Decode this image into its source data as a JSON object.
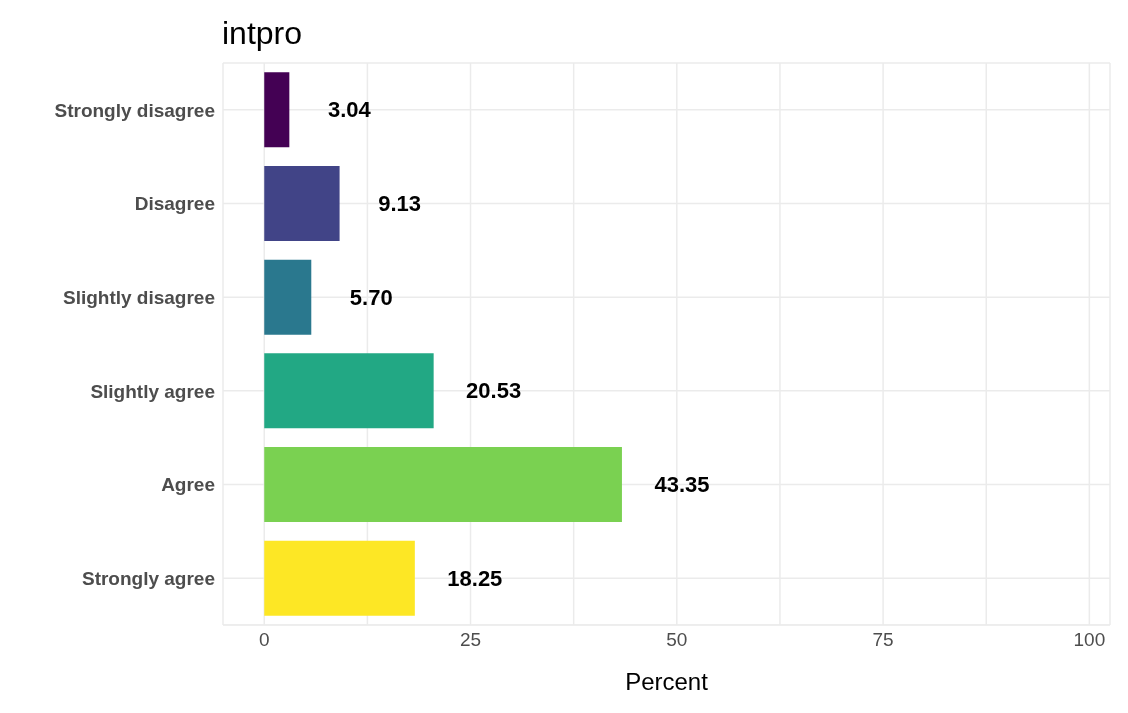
{
  "chart_data": {
    "type": "bar",
    "orientation": "horizontal",
    "title": "intpro",
    "xlabel": "Percent",
    "categories": [
      "Strongly disagree",
      "Disagree",
      "Slightly disagree",
      "Slightly agree",
      "Agree",
      "Strongly agree"
    ],
    "values": [
      3.04,
      9.13,
      5.7,
      20.53,
      43.35,
      18.25
    ],
    "value_labels": [
      "3.04",
      "9.13",
      "5.70",
      "20.53",
      "43.35",
      "18.25"
    ],
    "colors": [
      "#440154",
      "#414487",
      "#2a788e",
      "#22a884",
      "#7ad151",
      "#fde725"
    ],
    "xlim": [
      -5,
      102.5
    ],
    "xticks": [
      0,
      {
        "value": 12.5,
        "label": null
      },
      25,
      {
        "value": 37.5,
        "label": null
      },
      50,
      {
        "value": 62.5,
        "label": null
      },
      75,
      {
        "value": 87.5,
        "label": null
      },
      100
    ],
    "grid": true
  }
}
